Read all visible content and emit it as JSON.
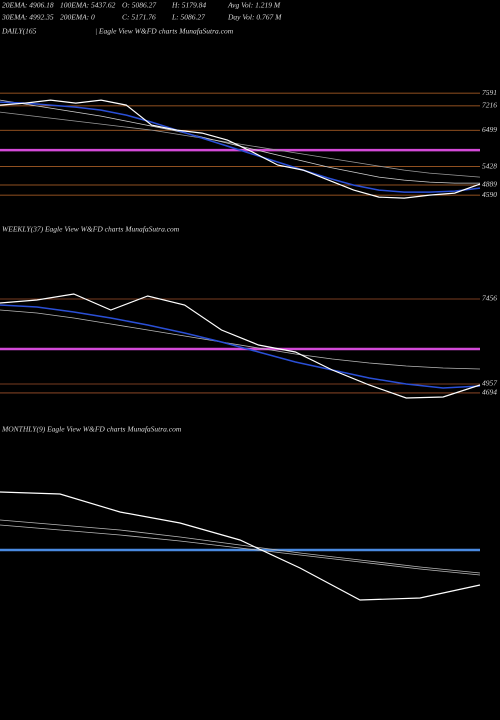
{
  "header": {
    "line1": [
      "20EMA: 4906.18",
      "100EMA: 5437.62",
      "O: 5086.27",
      "H: 5179.84",
      "Avg Vol: 1.219 M"
    ],
    "line2": [
      "30EMA: 4992.35",
      "200EMA: 0",
      "C: 5171.76",
      "L: 5086.27",
      "Day Vol: 0.767 M"
    ]
  },
  "chart_data": [
    {
      "type": "line",
      "title": "DAILY(165",
      "subtitle": "| Eagle  View  W&FD charts MunafaSutra.com",
      "categories": [
        null,
        null,
        null,
        null,
        null,
        null,
        null,
        null,
        null,
        null,
        null,
        null,
        null,
        null,
        null,
        null,
        null,
        null,
        null,
        null
      ],
      "series": [
        {
          "color": "#9a9a9a",
          "values": [
            7032,
            6944,
            6856,
            6768,
            6680,
            6591,
            6503,
            6386,
            6268,
            6150,
            6033,
            5915,
            5797,
            5680,
            5562,
            5444,
            5326,
            5238,
            5180,
            5121
          ]
        },
        {
          "color": "#cfcfcf",
          "values": [
            7385,
            7268,
            7150,
            7032,
            6915,
            6768,
            6621,
            6474,
            6297,
            6121,
            5945,
            5768,
            5592,
            5415,
            5268,
            5121,
            5032,
            4974,
            4945,
            4945
          ]
        },
        {
          "color": "#2a4fd6",
          "values": [
            7326,
            7297,
            7238,
            7179,
            7091,
            6944,
            6738,
            6503,
            6268,
            6033,
            5797,
            5562,
            5326,
            5091,
            4886,
            4739,
            4680,
            4680,
            4709,
            4798
          ]
        },
        {
          "color": "#ffffff",
          "values": [
            7238,
            7297,
            7385,
            7297,
            7385,
            7238,
            6650,
            6503,
            6415,
            6209,
            5856,
            5474,
            5326,
            5032,
            4738,
            4533,
            4504,
            4592,
            4651,
            4916
          ]
        }
      ],
      "ylim": [
        4300,
        7830
      ],
      "yticks": [
        7591,
        7216,
        6499,
        5428,
        4889,
        4590
      ],
      "tick_color": "#c06a2a",
      "hline": {
        "value": 5915,
        "color": "#d44ad8"
      }
    },
    {
      "type": "line",
      "title": "WEEKLY(37) Eagle  View  W&FD charts MunafaSutra.com",
      "categories": [
        null,
        null,
        null,
        null,
        null,
        null,
        null,
        null,
        null,
        null,
        null,
        null,
        null,
        null
      ],
      "series": [
        {
          "color": "#b8b8b8",
          "values": [
            7133,
            7044,
            6897,
            6721,
            6545,
            6368,
            6192,
            6015,
            5839,
            5692,
            5574,
            5486,
            5427,
            5398
          ]
        },
        {
          "color": "#2a4fd6",
          "values": [
            7280,
            7221,
            7074,
            6898,
            6692,
            6457,
            6192,
            5898,
            5604,
            5369,
            5133,
            4957,
            4839,
            4898
          ]
        },
        {
          "color": "#ffffff",
          "values": [
            7338,
            7427,
            7603,
            7133,
            7544,
            7280,
            6545,
            6104,
            5898,
            5368,
            4927,
            4545,
            4575,
            4928
          ]
        }
      ],
      "ylim": [
        4487,
        8162
      ],
      "yticks": [
        7456,
        4957,
        4694
      ],
      "tick_color": "#a0522d",
      "hline": {
        "value": 5986,
        "color": "#d44ad8"
      }
    },
    {
      "type": "line",
      "title": "MONTHLY(9) Eagle  View  W&FD charts MunafaSutra.com",
      "categories": [
        null,
        null,
        null,
        null,
        null,
        null,
        null,
        null,
        null
      ],
      "series": [
        {
          "color": "#b8b8b8",
          "values": [
            7000,
            6800,
            6600,
            6320,
            6000,
            5680,
            5400,
            5120,
            4880
          ]
        },
        {
          "color": "#b8b8b8",
          "values": [
            6800,
            6600,
            6400,
            6160,
            5880,
            5600,
            5320,
            5040,
            4800
          ]
        },
        {
          "color": "#ffffff",
          "values": [
            8120,
            8040,
            7320,
            6880,
            6200,
            5080,
            3800,
            3880,
            4400
          ]
        }
      ],
      "ylim": [
        3000,
        9000
      ],
      "hline": {
        "value": 5800,
        "color": "#4a8ae0"
      }
    }
  ]
}
